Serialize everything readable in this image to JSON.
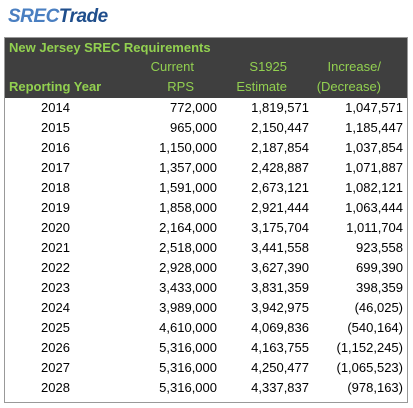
{
  "logo": {
    "left": "SREC",
    "right": "Trade"
  },
  "table": {
    "title": "New Jersey SREC Requirements",
    "headers": [
      [
        "Reporting Year"
      ],
      [
        "Current",
        "RPS"
      ],
      [
        "S1925",
        "Estimate"
      ],
      [
        "Increase/",
        "(Decrease)"
      ]
    ],
    "rows": [
      [
        "2014",
        "772,000",
        "1,819,571",
        "1,047,571"
      ],
      [
        "2015",
        "965,000",
        "2,150,447",
        "1,185,447"
      ],
      [
        "2016",
        "1,150,000",
        "2,187,854",
        "1,037,854"
      ],
      [
        "2017",
        "1,357,000",
        "2,428,887",
        "1,071,887"
      ],
      [
        "2018",
        "1,591,000",
        "2,673,121",
        "1,082,121"
      ],
      [
        "2019",
        "1,858,000",
        "2,921,444",
        "1,063,444"
      ],
      [
        "2020",
        "2,164,000",
        "3,175,704",
        "1,011,704"
      ],
      [
        "2021",
        "2,518,000",
        "3,441,558",
        "923,558"
      ],
      [
        "2022",
        "2,928,000",
        "3,627,390",
        "699,390"
      ],
      [
        "2023",
        "3,433,000",
        "3,831,359",
        "398,359"
      ],
      [
        "2024",
        "3,989,000",
        "3,942,975",
        "(46,025)"
      ],
      [
        "2025",
        "4,610,000",
        "4,069,836",
        "(540,164)"
      ],
      [
        "2026",
        "5,316,000",
        "4,163,755",
        "(1,152,245)"
      ],
      [
        "2027",
        "5,316,000",
        "4,250,477",
        "(1,065,523)"
      ],
      [
        "2028",
        "5,316,000",
        "4,337,837",
        "(978,163)"
      ]
    ]
  }
}
